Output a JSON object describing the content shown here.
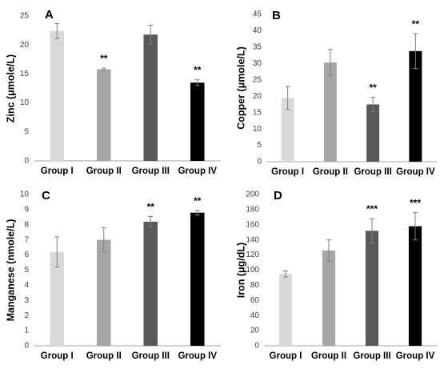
{
  "chart_data": [
    {
      "type": "bar",
      "panel": "A",
      "ylabel": "Zinc (μmole/L)",
      "categories": [
        "Group I",
        "Group II",
        "Group III",
        "Group IV"
      ],
      "values": [
        22.4,
        15.8,
        21.8,
        13.5
      ],
      "errors": [
        1.3,
        0.2,
        1.6,
        0.5
      ],
      "significance": [
        "",
        "**",
        "",
        "**"
      ],
      "colors": [
        "#d9d9d9",
        "#a6a6a6",
        "#595959",
        "#000000"
      ],
      "ylim": [
        0,
        25
      ],
      "yticks": [
        0,
        5,
        10,
        15,
        20,
        25
      ],
      "grid": false
    },
    {
      "type": "bar",
      "panel": "B",
      "ylabel": "Copper (μmole/L)",
      "categories": [
        "Group I",
        "Group II",
        "Group III",
        "Group IV"
      ],
      "values": [
        19.5,
        30.3,
        17.5,
        33.8
      ],
      "errors": [
        3.5,
        4.0,
        2.2,
        5.3
      ],
      "significance": [
        "",
        "",
        "**",
        "**"
      ],
      "colors": [
        "#d9d9d9",
        "#a6a6a6",
        "#595959",
        "#000000"
      ],
      "ylim": [
        0,
        45
      ],
      "yticks": [
        0,
        5,
        10,
        15,
        20,
        25,
        30,
        35,
        40,
        45
      ],
      "grid": false
    },
    {
      "type": "bar",
      "panel": "C",
      "ylabel": "Manganese (nmole/L)",
      "categories": [
        "Group I",
        "Group II",
        "Group III",
        "Group IV"
      ],
      "values": [
        6.2,
        7.0,
        8.2,
        8.8
      ],
      "errors": [
        1.0,
        0.8,
        0.35,
        0.15
      ],
      "significance": [
        "",
        "",
        "**",
        "**"
      ],
      "colors": [
        "#d9d9d9",
        "#a6a6a6",
        "#595959",
        "#000000"
      ],
      "ylim": [
        0,
        10
      ],
      "yticks": [
        0,
        1,
        2,
        3,
        4,
        5,
        6,
        7,
        8,
        9,
        10
      ],
      "grid": false
    },
    {
      "type": "bar",
      "panel": "D",
      "ylabel": "Iron (μg/dL)",
      "categories": [
        "Group I",
        "Group II",
        "Group III",
        "Group IV"
      ],
      "values": [
        95,
        126,
        152,
        158
      ],
      "errors": [
        4,
        14,
        16,
        18
      ],
      "significance": [
        "",
        "",
        "***",
        "***"
      ],
      "colors": [
        "#d9d9d9",
        "#a6a6a6",
        "#595959",
        "#000000"
      ],
      "ylim": [
        0,
        200
      ],
      "yticks": [
        0,
        20,
        40,
        60,
        80,
        100,
        120,
        140,
        160,
        180,
        200
      ],
      "grid": false
    }
  ]
}
